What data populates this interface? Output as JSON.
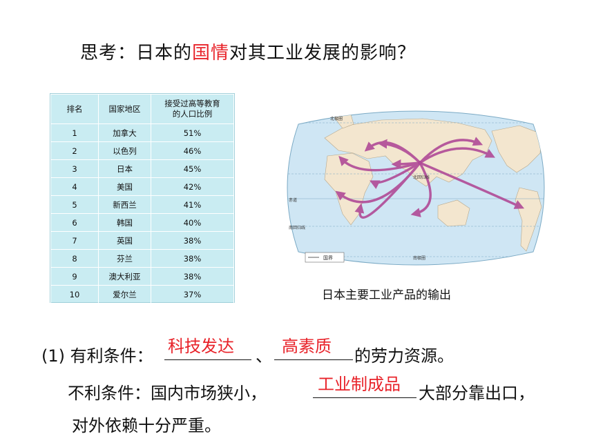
{
  "title": {
    "prefix": "思考：日本的",
    "highlight": "国情",
    "suffix": "对其工业发展的影响？"
  },
  "table": {
    "headers": [
      "排名",
      "国家地区",
      "接受过高等教育\n的人口比例"
    ],
    "rows": [
      [
        "1",
        "加拿大",
        "51%"
      ],
      [
        "2",
        "以色列",
        "46%"
      ],
      [
        "3",
        "日本",
        "45%"
      ],
      [
        "4",
        "美国",
        "42%"
      ],
      [
        "5",
        "新西兰",
        "41%"
      ],
      [
        "6",
        "韩国",
        "40%"
      ],
      [
        "7",
        "英国",
        "38%"
      ],
      [
        "8",
        "芬兰",
        "38%"
      ],
      [
        "9",
        "澳大利亚",
        "38%"
      ],
      [
        "10",
        "爱尔兰",
        "37%"
      ]
    ]
  },
  "map": {
    "caption": "日本主要工业产品的输出",
    "labels": {
      "arctic": "北极圈",
      "tropic_n": "北回归线",
      "equator": "赤道",
      "tropic_s": "南回归线",
      "antarctic": "南极圈",
      "legend": "国界"
    },
    "colors": {
      "ocean": "#cfe6f4",
      "land": "#f3e6cf",
      "arrow": "#b04a96"
    }
  },
  "q1": {
    "label": "(1) 有利条件：",
    "sep": "、",
    "tail": "的劳力资源。",
    "answer1": "科技发达",
    "answer2": "高素质"
  },
  "q2": {
    "label": "不利条件：国内市场狭小，",
    "tail": "大部分靠出口，",
    "answer": "工业制成品",
    "line2": "对外依赖十分严重。"
  }
}
